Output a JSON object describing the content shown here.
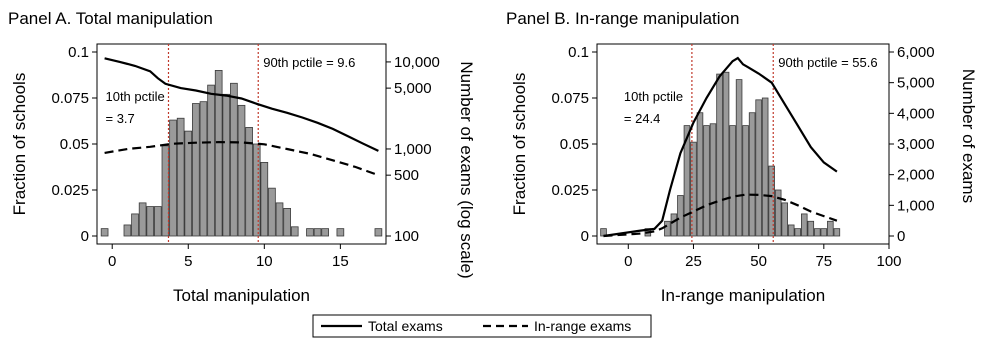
{
  "legend": {
    "items": [
      {
        "label": "Total exams",
        "style": "solid"
      },
      {
        "label": "In-range exams",
        "style": "dashed"
      }
    ]
  },
  "chart_data": [
    {
      "type": "bar",
      "title": "Panel A. Total manipulation",
      "xlabel": "Total manipulation",
      "ylabel": "Fraction of schools",
      "y2label": "Number of exams (log scale)",
      "xlim": [
        -1,
        18
      ],
      "ylim": [
        0,
        0.1
      ],
      "y2lim": [
        100,
        13000
      ],
      "y2scale": "log",
      "xticks": [
        "0",
        "5",
        "10",
        "15"
      ],
      "xtick_values": [
        0,
        5,
        10,
        15
      ],
      "yticks": [
        "0",
        "0.025",
        "0.05",
        "0.075",
        "0.1"
      ],
      "ytick_values": [
        0,
        0.025,
        0.05,
        0.075,
        0.1
      ],
      "y2ticks": [
        "100",
        "500",
        "1,000",
        "5,000",
        "10,000"
      ],
      "y2tick_values": [
        100,
        500,
        1000,
        5000,
        10000
      ],
      "bar_width": 0.45,
      "bars": {
        "x": [
          -0.5,
          1.0,
          1.5,
          2.0,
          2.5,
          3.0,
          3.5,
          4.0,
          4.5,
          5.0,
          5.5,
          6.0,
          6.5,
          7.0,
          7.5,
          8.0,
          8.5,
          9.0,
          9.5,
          10.0,
          10.5,
          11.0,
          11.5,
          12.0,
          13.0,
          13.5,
          14.0,
          15.0,
          17.5
        ],
        "values": [
          0.004,
          0.006,
          0.012,
          0.018,
          0.016,
          0.016,
          0.049,
          0.063,
          0.064,
          0.057,
          0.072,
          0.073,
          0.082,
          0.09,
          0.077,
          0.083,
          0.071,
          0.059,
          0.05,
          0.04,
          0.026,
          0.018,
          0.015,
          0.005,
          0.004,
          0.004,
          0.004,
          0.004,
          0.004
        ]
      },
      "lines": [
        {
          "name": "Total exams",
          "style": "solid",
          "axis": "y2",
          "x": [
            -0.5,
            0.5,
            1.5,
            2.5,
            3.0,
            3.5,
            4.5,
            5.5,
            6.5,
            7.5,
            8.5,
            9.5,
            10.5,
            11.5,
            12.5,
            13.5,
            14.5,
            15.5,
            16.5,
            17.5
          ],
          "values": [
            11000,
            10000,
            9000,
            7800,
            6500,
            5600,
            5000,
            4700,
            4300,
            4100,
            3800,
            3300,
            2900,
            2600,
            2300,
            2000,
            1700,
            1400,
            1150,
            950
          ]
        },
        {
          "name": "In-range exams",
          "style": "dashed",
          "axis": "y2",
          "x": [
            -0.5,
            1.0,
            2.5,
            4.0,
            5.5,
            7.0,
            8.5,
            10.0,
            11.5,
            13.0,
            14.5,
            16.0,
            17.5
          ],
          "values": [
            900,
            1000,
            1060,
            1150,
            1180,
            1200,
            1190,
            1130,
            1000,
            880,
            740,
            620,
            500
          ]
        }
      ],
      "percentiles": [
        {
          "label_line1": "10th pctile",
          "label_line2": "= 3.7",
          "x": 3.7
        },
        {
          "label_line1": "90th pctile = 9.6",
          "label_line2": "",
          "x": 9.6
        }
      ]
    },
    {
      "type": "bar",
      "title": "Panel B. In-range manipulation",
      "xlabel": "In-range manipulation",
      "ylabel": "Fraction of schools",
      "y2label": "Number of exams",
      "xlim": [
        -12,
        100
      ],
      "ylim": [
        0,
        0.1
      ],
      "y2lim": [
        0,
        6000
      ],
      "y2scale": "linear",
      "xticks": [
        "0",
        "25",
        "50",
        "75",
        "100"
      ],
      "xtick_values": [
        0,
        25,
        50,
        75,
        100
      ],
      "yticks": [
        "0",
        "0.025",
        "0.05",
        "0.075",
        "0.1"
      ],
      "ytick_values": [
        0,
        0.025,
        0.05,
        0.075,
        0.1
      ],
      "y2ticks": [
        "0",
        "1,000",
        "2,000",
        "3,000",
        "4,000",
        "5,000",
        "6,000"
      ],
      "y2tick_values": [
        0,
        1000,
        2000,
        3000,
        4000,
        5000,
        6000
      ],
      "bar_width": 2.2,
      "bars": {
        "x": [
          -9.5,
          7.5,
          15.0,
          17.5,
          20.0,
          22.5,
          25.0,
          27.5,
          30.0,
          32.5,
          35.0,
          37.5,
          40.0,
          42.5,
          45.0,
          47.5,
          50.0,
          52.5,
          55.0,
          57.5,
          60.0,
          62.5,
          65.0,
          67.5,
          70.0,
          72.5,
          75.0,
          77.5,
          80.0
        ],
        "values": [
          0.004,
          0.004,
          0.008,
          0.012,
          0.022,
          0.06,
          0.051,
          0.067,
          0.06,
          0.061,
          0.088,
          0.089,
          0.06,
          0.085,
          0.06,
          0.067,
          0.074,
          0.075,
          0.038,
          0.025,
          0.018,
          0.006,
          0.004,
          0.012,
          0.008,
          0.004,
          0.004,
          0.008,
          0.004
        ]
      },
      "lines": [
        {
          "name": "Total exams",
          "style": "solid",
          "axis": "y2",
          "x": [
            -9.5,
            5,
            10,
            13,
            16,
            20,
            25,
            30,
            35,
            40,
            42,
            44,
            46,
            50,
            55,
            60,
            65,
            70,
            75,
            80
          ],
          "values": [
            0,
            180,
            230,
            500,
            1500,
            2700,
            3700,
            4500,
            5200,
            5700,
            5800,
            5600,
            5500,
            5300,
            5000,
            4300,
            3600,
            2900,
            2400,
            2100
          ]
        },
        {
          "name": "In-range exams",
          "style": "dashed",
          "axis": "y2",
          "x": [
            -9.5,
            5,
            10,
            13,
            16,
            20,
            25,
            30,
            35,
            40,
            45,
            50,
            55,
            60,
            65,
            70,
            75,
            80
          ],
          "values": [
            0,
            80,
            150,
            250,
            400,
            600,
            800,
            1000,
            1150,
            1280,
            1350,
            1340,
            1300,
            1180,
            1000,
            800,
            650,
            500
          ]
        }
      ],
      "percentiles": [
        {
          "label_line1": "10th pctile",
          "label_line2": "= 24.4",
          "x": 24.4
        },
        {
          "label_line1": "90th pctile = 55.6",
          "label_line2": "",
          "x": 55.6
        }
      ]
    }
  ]
}
